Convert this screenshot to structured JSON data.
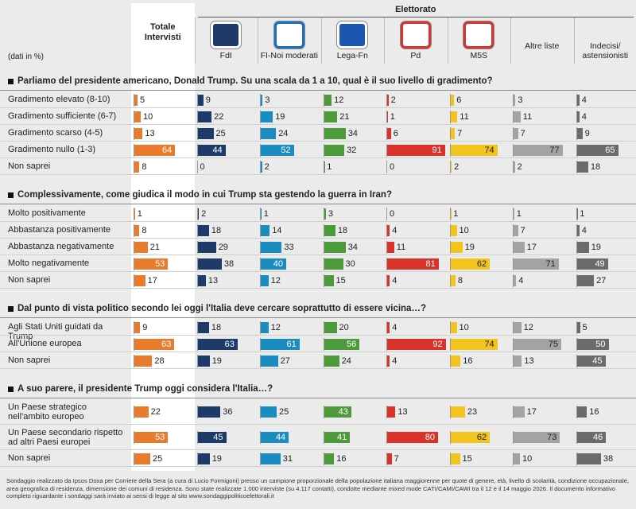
{
  "header": {
    "group_label": "Elettorato",
    "units_note": "(dati in %)"
  },
  "columns": [
    {
      "name": "Totale Intervisti",
      "color": "#e97b2c"
    },
    {
      "name": "FdI",
      "color": "#1d3a68"
    },
    {
      "name": "FI-Noi moderati",
      "color": "#1b8cbf"
    },
    {
      "name": "Lega-Fn",
      "color": "#4c9a3b"
    },
    {
      "name": "Pd",
      "color": "#d8322a"
    },
    {
      "name": "M5S",
      "color": "#f1c51d"
    },
    {
      "name": "Altre liste",
      "color": "#a3a3a3"
    },
    {
      "name": "Indecisi/ astensionisti",
      "color": "#6b6b6b"
    }
  ],
  "sections": [
    {
      "question": "Parliamo del presidente americano, Donald Trump. Su una scala da 1 a 10, qual è il suo livello di gradimento?",
      "rows": [
        {
          "label": "Gradimento elevato (8-10)",
          "values": [
            5,
            9,
            3,
            12,
            2,
            6,
            3,
            4
          ]
        },
        {
          "label": "Gradimento sufficiente (6-7)",
          "values": [
            10,
            22,
            19,
            21,
            1,
            11,
            11,
            4
          ]
        },
        {
          "label": "Gradimento scarso (4-5)",
          "values": [
            13,
            25,
            24,
            34,
            6,
            7,
            7,
            9
          ]
        },
        {
          "label": "Gradimento nullo (1-3)",
          "values": [
            64,
            44,
            52,
            32,
            91,
            74,
            77,
            65
          ]
        },
        {
          "label": "Non saprei",
          "values": [
            8,
            0,
            2,
            1,
            0,
            2,
            2,
            18
          ]
        }
      ]
    },
    {
      "question": "Complessivamente, come giudica il modo  in cui Trump sta gestendo la guerra in Iran?",
      "rows": [
        {
          "label": "Molto positivamente",
          "values": [
            1,
            2,
            1,
            3,
            0,
            1,
            1,
            1
          ]
        },
        {
          "label": "Abbastanza positivamente",
          "values": [
            8,
            18,
            14,
            18,
            4,
            10,
            7,
            4
          ]
        },
        {
          "label": "Abbastanza negativamente",
          "values": [
            21,
            29,
            33,
            34,
            11,
            19,
            17,
            19
          ]
        },
        {
          "label": "Molto negativamente",
          "values": [
            53,
            38,
            40,
            30,
            81,
            62,
            71,
            49
          ]
        },
        {
          "label": "Non saprei",
          "values": [
            17,
            13,
            12,
            15,
            4,
            8,
            4,
            27
          ]
        }
      ]
    },
    {
      "question": "Dal punto di vista politico secondo lei oggi l'Italia deve cercare soprattutto di essere vicina…?",
      "rows": [
        {
          "label": "Agli Stati Uniti guidati da Trump",
          "values": [
            9,
            18,
            12,
            20,
            4,
            10,
            12,
            5
          ]
        },
        {
          "label": "All'Unione europea",
          "values": [
            63,
            63,
            61,
            56,
            92,
            74,
            75,
            50
          ]
        },
        {
          "label": "Non saprei",
          "values": [
            28,
            19,
            27,
            24,
            4,
            16,
            13,
            45
          ]
        }
      ]
    },
    {
      "question": "A suo parere, il presidente Trump oggi considera l'Italia…?",
      "rows": [
        {
          "label": "Un Paese strategico nell'ambito europeo",
          "values": [
            22,
            36,
            25,
            43,
            13,
            23,
            17,
            16
          ]
        },
        {
          "label": "Un Paese secondario rispetto ad altri Paesi europei",
          "values": [
            53,
            45,
            44,
            41,
            80,
            62,
            73,
            46
          ]
        },
        {
          "label": "Non saprei",
          "values": [
            25,
            19,
            31,
            16,
            7,
            15,
            10,
            38
          ]
        }
      ]
    }
  ],
  "footer": "Sondaggio realizzato da Ipsos Doxa per Corriere della Sera (a cura di Lucio Formigoni) presso un campione proporzionale della popolazione italiana maggiorenne per quote di genere, età, livello di scolarità, condizione occupazionale, area geografica di residenza, dimensione dei comuni di residenza. Sono state realizzate 1.000 interviste (su 4.117 contatti), condotte mediante mixed mode CATI/CAMI/CAWI tra il 12 e il 14 maggio 2026. Il documento informativo completo riguardante i sondaggi sarà inviato ai sensi di legge al sito www.sondaggipoliticoelettorali.it"
}
